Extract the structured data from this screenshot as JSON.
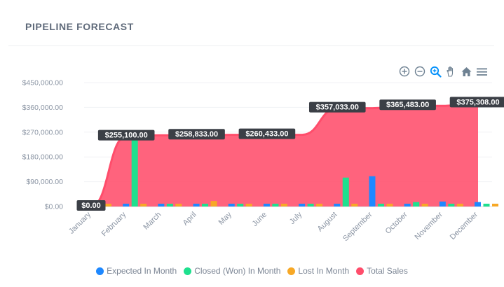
{
  "card": {
    "title": "PIPELINE FORECAST"
  },
  "toolbar": {
    "buttons": [
      {
        "name": "zoom-in-icon",
        "color": "#6e8192"
      },
      {
        "name": "zoom-out-icon",
        "color": "#6e8192"
      },
      {
        "name": "selection-zoom-icon",
        "color": "#008ffb"
      },
      {
        "name": "pan-hand-icon",
        "color": "#6e8192"
      },
      {
        "name": "reset-home-icon",
        "color": "#6e8192"
      },
      {
        "name": "menu-icon",
        "color": "#6e8192"
      }
    ]
  },
  "chart_data": {
    "type": "bar+area",
    "title": "PIPELINE FORECAST",
    "xlabel": "",
    "ylabel": "",
    "ylim": [
      0,
      450000
    ],
    "y_ticks": [
      0,
      90000,
      180000,
      270000,
      360000,
      450000
    ],
    "y_tick_labels": [
      "$0.00",
      "$90,000.00",
      "$180,000.00",
      "$270,000.00",
      "$360,000.00",
      "$450,000.00"
    ],
    "categories": [
      "January",
      "February",
      "March",
      "April",
      "May",
      "June",
      "July",
      "August",
      "September",
      "October",
      "November",
      "December"
    ],
    "series": [
      {
        "name": "Expected In Month",
        "type": "bar",
        "color": "#1e88ff",
        "values": [
          0,
          0,
          0,
          0,
          0,
          0,
          0,
          0,
          110000,
          0,
          18000,
          16000
        ]
      },
      {
        "name": "Closed (Won) In Month",
        "type": "bar",
        "color": "#1ee08e",
        "values": [
          0,
          245000,
          0,
          10000,
          0,
          0,
          0,
          105000,
          0,
          16000,
          0,
          10000
        ]
      },
      {
        "name": "Lost In Month",
        "type": "bar",
        "color": "#f7a826",
        "values": [
          0,
          0,
          0,
          20000,
          0,
          0,
          0,
          0,
          0,
          0,
          0,
          0
        ]
      },
      {
        "name": "Total Sales",
        "type": "area",
        "color": "#ff4d6b",
        "values": [
          0,
          255100,
          258833,
          258833,
          260433,
          260433,
          260433,
          357033,
          357033,
          365483,
          365483,
          375308
        ]
      }
    ],
    "data_labels": [
      {
        "index": 0,
        "text": "$0.00"
      },
      {
        "index": 1,
        "text": "$255,100.00"
      },
      {
        "index": 3,
        "text": "$258,833.00"
      },
      {
        "index": 5,
        "text": "$260,433.00"
      },
      {
        "index": 7,
        "text": "$357,033.00"
      },
      {
        "index": 9,
        "text": "$365,483.00"
      },
      {
        "index": 11,
        "text": "$375,308.00"
      }
    ],
    "legend_position": "bottom-center"
  }
}
